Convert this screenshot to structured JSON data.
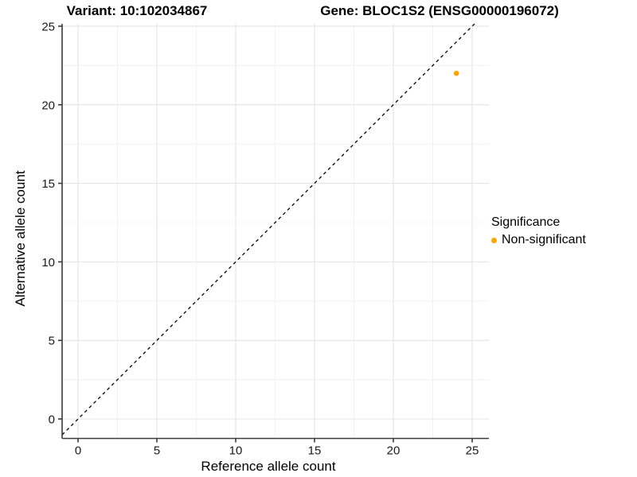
{
  "chart_data": {
    "type": "scatter",
    "title_left": "Variant: 10:102034867",
    "title_right": "Gene: BLOC1S2 (ENSG00000196072)",
    "xlabel": "Reference allele count",
    "ylabel": "Alternative allele count",
    "x_ticks": [
      0,
      5,
      10,
      15,
      20,
      25
    ],
    "y_ticks": [
      0,
      5,
      10,
      15,
      20,
      25
    ],
    "x_minor_gridlines": [
      2.5,
      7.5,
      12.5,
      17.5,
      22.5
    ],
    "y_minor_gridlines": [
      2.5,
      7.5,
      12.5,
      17.5,
      22.5
    ],
    "xlim": [
      -1.01,
      26.06
    ],
    "ylim": [
      -1.24,
      25.15
    ],
    "grid": "major+minor",
    "background": "#FFFFFF",
    "reference_line": {
      "kind": "identity",
      "slope": 1,
      "intercept": 0,
      "style": "dashed",
      "color": "#000000"
    },
    "points": [
      {
        "x": 24,
        "y": 22,
        "series": "Non-significant",
        "color": "#FFA500"
      }
    ],
    "legend": {
      "title": "Significance",
      "position": "right",
      "items": [
        {
          "label": "Non-significant",
          "color": "#FFA500"
        }
      ]
    }
  },
  "style_colors": {
    "major_grid": "#E4E4E4",
    "minor_grid": "#F0F0F0",
    "axis_line": "#3a3a3a",
    "tick_text": "#1a1a1a",
    "point_orange": "#FFA500"
  }
}
